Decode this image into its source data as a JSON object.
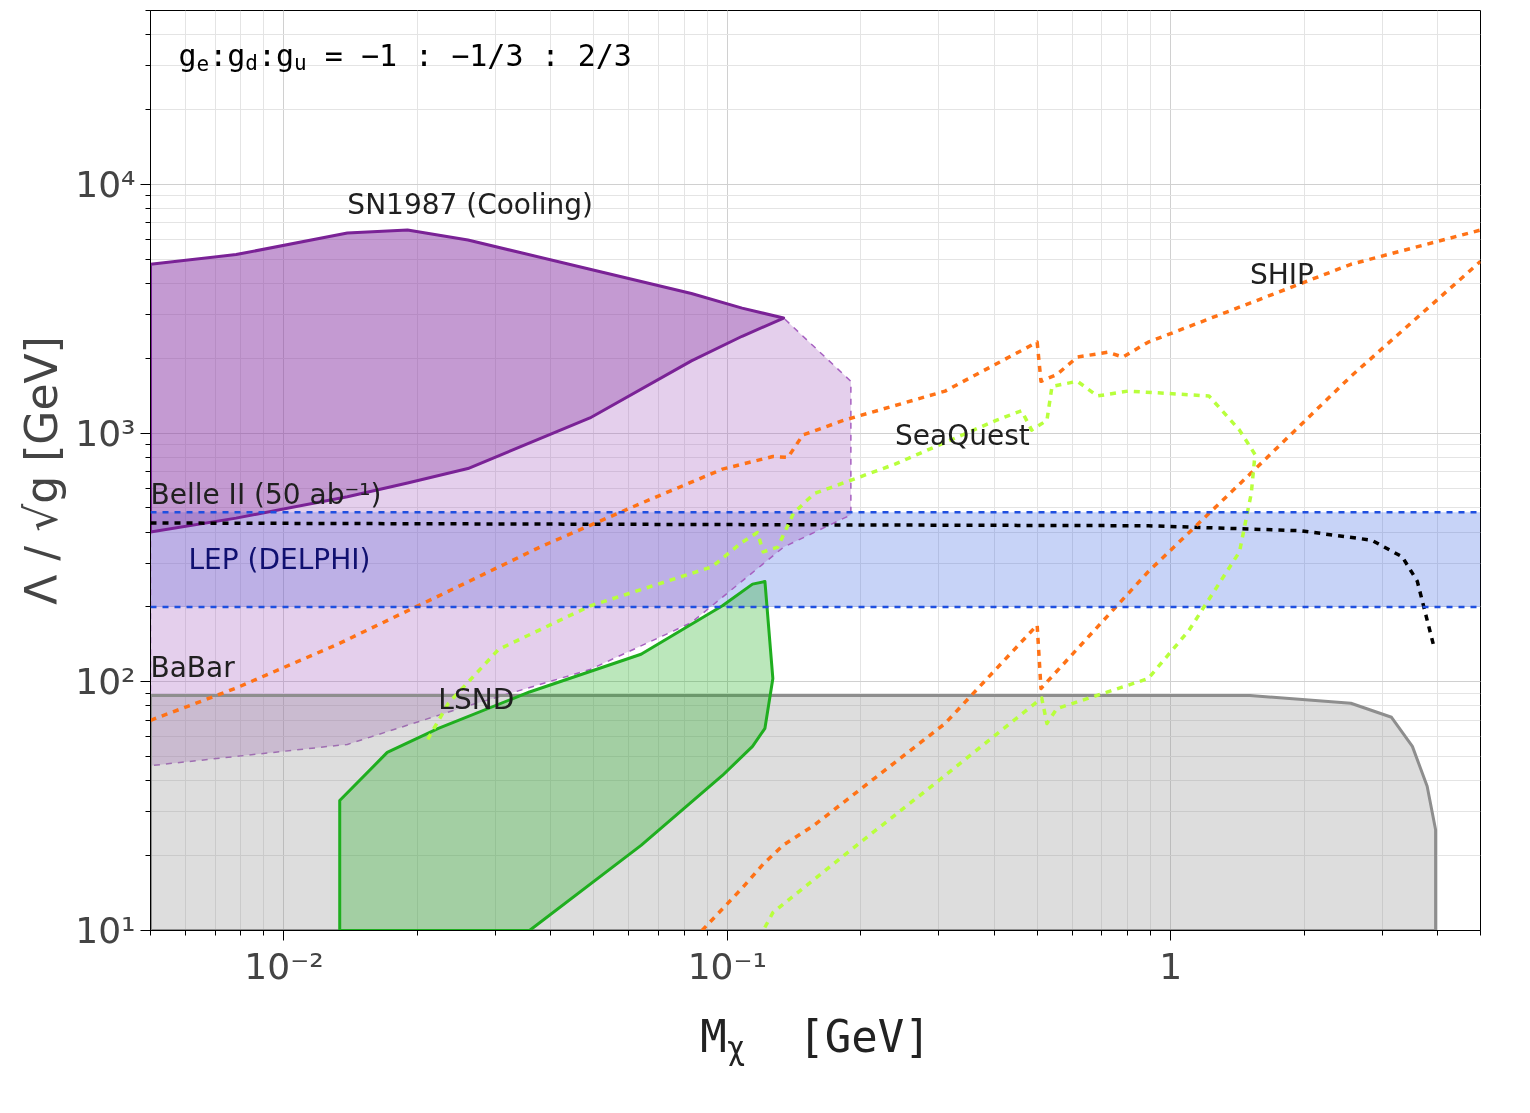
{
  "chart_data": {
    "type": "line",
    "xlabel": "M$_{χ}$  [GeV]",
    "ylabel": "Λ / √g [GeV]",
    "log": "xy",
    "grid": true,
    "xlim": [
      0.005,
      5
    ],
    "ylim": [
      10,
      50000
    ],
    "xticks": [
      {
        "value": 0.01,
        "label": "10⁻²"
      },
      {
        "value": 0.1,
        "label": "10⁻¹"
      },
      1
    ],
    "yticks": [
      {
        "value": 10,
        "label": "10¹"
      },
      {
        "value": 100,
        "label": "10²"
      },
      {
        "value": 1000,
        "label": "10³"
      },
      {
        "value": 10000,
        "label": "10⁴"
      }
    ],
    "bands": [
      {
        "axis": "y",
        "from": 200,
        "to": 480,
        "label": "LEP (DELPHI)",
        "color": "#1f4fe0"
      }
    ],
    "ref_lines": [
      {
        "axis": "y",
        "value": 480,
        "color": "#1f4fe0",
        "line_style": "dashed"
      },
      {
        "axis": "y",
        "value": 200,
        "color": "#1f4fe0",
        "line_style": "dashed"
      }
    ],
    "series": [
      {
        "type": "area",
        "color": "#a660c0",
        "line_style": "dashed",
        "x": [
          0.005,
          0.0078,
          0.0139,
          0.019,
          0.026,
          0.049,
          0.083,
          0.108,
          0.134,
          0.19,
          0.19,
          0.134,
          0.083,
          0.049,
          0.026,
          0.0139,
          0.005
        ],
        "values": [
          4770,
          5220,
          6370,
          6550,
          5970,
          4560,
          3640,
          3180,
          2900,
          1615,
          469,
          348,
          173,
          112,
          80,
          56,
          46
        ]
      },
      {
        "type": "area",
        "color": "#7a2296",
        "line_style": "solid",
        "x": [
          0.005,
          0.0078,
          0.0139,
          0.019,
          0.026,
          0.049,
          0.083,
          0.108,
          0.134,
          0.108,
          0.083,
          0.049,
          0.026,
          0.019,
          0.0139,
          0.0078,
          0.005
        ],
        "values": [
          4770,
          5220,
          6370,
          6550,
          5970,
          4560,
          3640,
          3180,
          2900,
          2450,
          1950,
          1150,
          720,
          630,
          555,
          455,
          400
        ]
      },
      {
        "type": "area",
        "color": "#8e8e8e",
        "line_style": "solid",
        "x": [
          0.005,
          1.51,
          2.55,
          3.15,
          3.51,
          3.79,
          3.96,
          3.96,
          0.005
        ],
        "values": [
          88,
          88,
          82,
          72,
          55,
          38,
          25.4,
          10,
          10
        ]
      },
      {
        "type": "area",
        "color": "#1fae1f",
        "line_style": "solid",
        "x": [
          0.01336,
          0.0171,
          0.0223,
          0.0358,
          0.0639,
          0.0975,
          0.114,
          0.1216,
          0.1267,
          0.1216,
          0.114,
          0.0975,
          0.0639,
          0.0358,
          0.01336
        ],
        "values": [
          33.3,
          52,
          65,
          91,
          129,
          202,
          247,
          253,
          103,
          65,
          55,
          42,
          22,
          10,
          10
        ]
      },
      {
        "color": "#000000",
        "line_style": "dashed",
        "x": [
          0.005,
          0.89,
          1.96,
          2.84,
          3.33,
          3.6,
          3.79,
          3.94
        ],
        "values": [
          435,
          424,
          405,
          371,
          318,
          254,
          177,
          135
        ]
      },
      {
        "color": "#ff7216",
        "line_style": "dashed",
        "x": [
          0.005,
          0.00776,
          0.01315,
          0.0223,
          0.0378,
          0.0639,
          0.0975,
          0.1267,
          0.137,
          0.148,
          0.183,
          0.31,
          0.5,
          0.51,
          0.554,
          0.616,
          0.722,
          0.78,
          0.89,
          1.51,
          2.55,
          5.0
        ],
        "values": [
          70,
          94,
          141,
          221,
          348,
          522,
          716,
          805,
          798,
          982,
          1125,
          1475,
          2320,
          1615,
          1720,
          2020,
          2115,
          2020,
          2320,
          3330,
          4770,
          6550
        ]
      },
      {
        "color": "#ff7216",
        "line_style": "dashed",
        "x": [
          0.0877,
          0.108,
          0.1205,
          0.134,
          0.157,
          0.31,
          0.5,
          0.51,
          0.89,
          1.51,
          2.55,
          5.0
        ],
        "values": [
          10,
          14.8,
          18.5,
          22.1,
          26.5,
          68,
          169,
          94,
          277,
          684,
          1690,
          4900
        ]
      },
      {
        "color": "#b8ff3c",
        "line_style": "dashed",
        "x": [
          0.0211,
          0.0235,
          0.0305,
          0.0491,
          0.0924,
          0.108,
          0.117,
          0.1205,
          0.13,
          0.141,
          0.157,
          0.239,
          0.404,
          0.461,
          0.486,
          0.526,
          0.54,
          0.616,
          0.684,
          0.802,
          1.22,
          1.43,
          1.55,
          1.52,
          1.43,
          1.1,
          0.89,
          0.554,
          0.526,
          0.512,
          0.31,
          0.183,
          0.1267,
          0.1205
        ],
        "values": [
          58.7,
          82,
          135,
          202,
          290,
          364,
          398,
          333,
          348,
          476,
          571,
          750,
          1125,
          1230,
          1028,
          1125,
          1540,
          1615,
          1410,
          1475,
          1410,
          1028,
          820,
          571,
          333,
          161,
          103,
          78,
          68,
          86,
          42,
          20,
          11.8,
          10
        ]
      }
    ],
    "annotations": [
      "g$_{e}$:g$_{d}$:g$_{u}$ = −1 : −1/3 : 2/3",
      {
        "text": "SN1987 (Cooling)",
        "x": 0.0139,
        "y": 6370
      },
      {
        "text": "Belle II (50 ab⁻¹)",
        "x": 0.005,
        "y": 435
      },
      {
        "text": "BaBar",
        "x": 0.005,
        "y": 88
      },
      {
        "text": "LSND",
        "x": 0.0223,
        "y": 65
      },
      {
        "text": "SeaQuest",
        "x": 0.239,
        "y": 750
      },
      {
        "text": "SHIP",
        "x": 1.51,
        "y": 3330
      }
    ]
  }
}
